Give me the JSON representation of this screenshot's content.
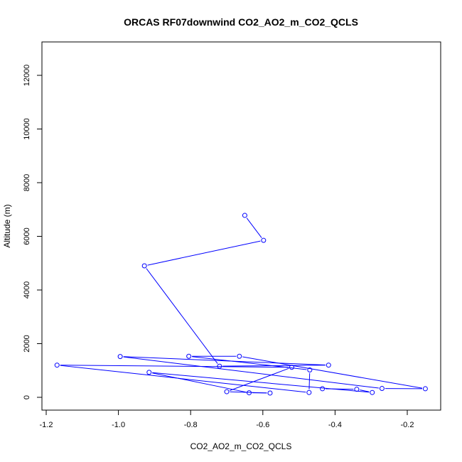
{
  "chart_data": {
    "type": "line",
    "title": "ORCAS RF07downwind CO2_AO2_m_CO2_QCLS",
    "xlabel": "CO2_AO2_m_CO2_QCLS",
    "ylabel": "Altitude (m)",
    "xlim": [
      -1.2,
      -0.15
    ],
    "ylim": [
      0,
      13000
    ],
    "x_ticks": [
      -1.2,
      -1.0,
      -0.8,
      -0.6,
      -0.4,
      -0.2
    ],
    "x_tick_labels": [
      "-1.2",
      "-1.0",
      "-0.8",
      "-0.6",
      "-0.4",
      "-0.2"
    ],
    "y_ticks": [
      0,
      2000,
      4000,
      6000,
      8000,
      10000,
      12000
    ],
    "y_tick_labels": [
      "0",
      "2000",
      "4000",
      "6000",
      "8000",
      "10000",
      "12000"
    ],
    "grid": false,
    "series": [
      {
        "color": "#0000ff",
        "marker": "open-circle",
        "points": [
          {
            "x": -0.65,
            "y": 6780
          },
          {
            "x": -0.598,
            "y": 5850
          },
          {
            "x": -0.928,
            "y": 4900
          },
          {
            "x": -0.72,
            "y": 1160
          },
          {
            "x": -0.418,
            "y": 1200
          },
          {
            "x": -0.995,
            "y": 1520
          },
          {
            "x": -0.27,
            "y": 330
          },
          {
            "x": -0.15,
            "y": 320
          },
          {
            "x": -0.665,
            "y": 1530
          },
          {
            "x": -0.805,
            "y": 1530
          },
          {
            "x": -0.47,
            "y": 1020
          },
          {
            "x": -0.472,
            "y": 180
          },
          {
            "x": -1.17,
            "y": 1200
          },
          {
            "x": -0.52,
            "y": 1120
          },
          {
            "x": -0.7,
            "y": 210
          },
          {
            "x": -0.58,
            "y": 160
          },
          {
            "x": -0.638,
            "y": 170
          },
          {
            "x": -0.915,
            "y": 930
          },
          {
            "x": -0.297,
            "y": 180
          },
          {
            "x": -0.34,
            "y": 300
          },
          {
            "x": -0.435,
            "y": 320
          }
        ]
      }
    ]
  }
}
